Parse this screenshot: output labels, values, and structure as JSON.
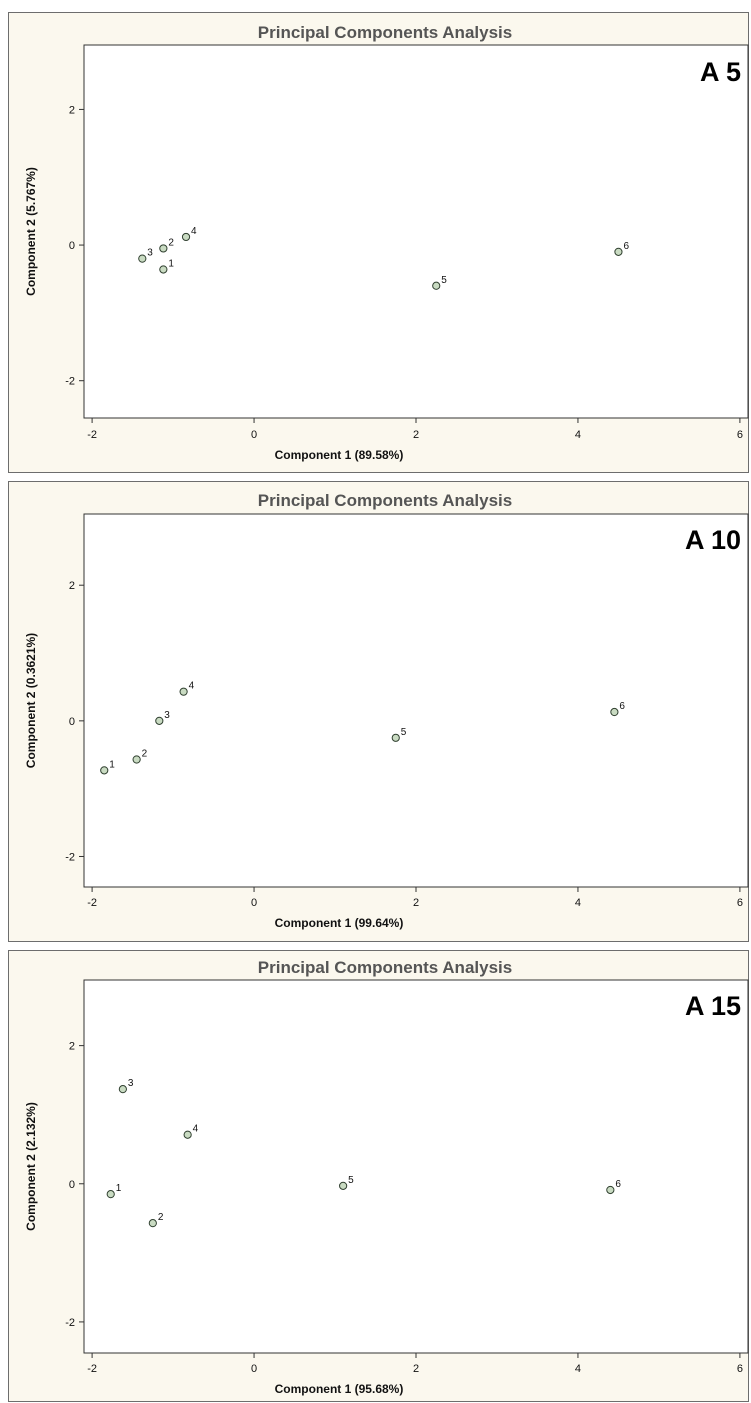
{
  "chart_data": [
    {
      "type": "scatter",
      "title": "Principal Components Analysis",
      "panel_label": "A 5",
      "xlabel": "Component 1 (89.58%)",
      "ylabel": "Component 2 (5.767%)",
      "xlim": [
        -2.1,
        6.1
      ],
      "ylim": [
        -2.55,
        2.95
      ],
      "xticks": [
        -2,
        0,
        2,
        4,
        6
      ],
      "yticks": [
        -2,
        0,
        2
      ],
      "points": [
        {
          "label": "1",
          "x": -1.12,
          "y": -0.36
        },
        {
          "label": "2",
          "x": -1.12,
          "y": -0.05
        },
        {
          "label": "3",
          "x": -1.38,
          "y": -0.2
        },
        {
          "label": "4",
          "x": -0.84,
          "y": 0.12
        },
        {
          "label": "5",
          "x": 2.25,
          "y": -0.6
        },
        {
          "label": "6",
          "x": 4.5,
          "y": -0.1
        }
      ]
    },
    {
      "type": "scatter",
      "title": "Principal Components Analysis",
      "panel_label": "A 10",
      "xlabel": "Component 1 (99.64%)",
      "ylabel": "Component 2 (0.3621%)",
      "xlim": [
        -2.1,
        6.1
      ],
      "ylim": [
        -2.45,
        3.05
      ],
      "xticks": [
        -2,
        0,
        2,
        4,
        6
      ],
      "yticks": [
        -2,
        0,
        2
      ],
      "points": [
        {
          "label": "1",
          "x": -1.85,
          "y": -0.73
        },
        {
          "label": "2",
          "x": -1.45,
          "y": -0.57
        },
        {
          "label": "3",
          "x": -1.17,
          "y": 0.0
        },
        {
          "label": "4",
          "x": -0.87,
          "y": 0.43
        },
        {
          "label": "5",
          "x": 1.75,
          "y": -0.25
        },
        {
          "label": "6",
          "x": 4.45,
          "y": 0.13
        }
      ]
    },
    {
      "type": "scatter",
      "title": "Principal Components Analysis",
      "panel_label": "A 15",
      "xlabel": "Component 1 (95.68%)",
      "ylabel": "Component 2 (2.132%)",
      "xlim": [
        -2.1,
        6.1
      ],
      "ylim": [
        -2.45,
        2.95
      ],
      "xticks": [
        -2,
        0,
        2,
        4,
        6
      ],
      "yticks": [
        -2,
        0,
        2
      ],
      "points": [
        {
          "label": "1",
          "x": -1.77,
          "y": -0.15
        },
        {
          "label": "2",
          "x": -1.25,
          "y": -0.57
        },
        {
          "label": "3",
          "x": -1.62,
          "y": 1.37
        },
        {
          "label": "4",
          "x": -0.82,
          "y": 0.71
        },
        {
          "label": "5",
          "x": 1.1,
          "y": -0.03
        },
        {
          "label": "6",
          "x": 4.4,
          "y": -0.09
        }
      ]
    }
  ],
  "colors": {
    "panel_background": "#fbf8ee",
    "plot_background": "#ffffff",
    "axis": "#333333",
    "marker_fill": "#c9dbc2",
    "marker_stroke": "#2f3f2f",
    "title_text": "#555555"
  }
}
